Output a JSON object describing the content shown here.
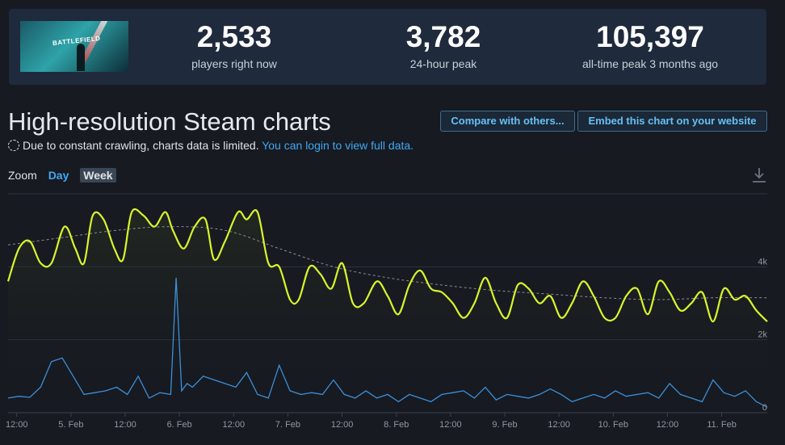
{
  "header": {
    "thumbnail_text": "BATTLEFIELD",
    "stats": [
      {
        "value": "2,533",
        "label": "players right now"
      },
      {
        "value": "3,782",
        "label": "24-hour peak"
      },
      {
        "value": "105,397",
        "label": "all-time peak 3 months ago"
      }
    ]
  },
  "title": "High-resolution Steam charts",
  "buttons": {
    "compare": "Compare with others...",
    "embed": "Embed this chart on your website"
  },
  "notice": {
    "text": "Due to constant crawling, charts data is limited.",
    "link": "You can login to view full data."
  },
  "zoom": {
    "label": "Zoom",
    "options": [
      "Day",
      "Week"
    ],
    "selected": "Week"
  },
  "colors": {
    "players": "#d7f52b",
    "twitch": "#3c8fd8",
    "average": "#8a8f98"
  },
  "chart_data": {
    "type": "line",
    "x_ticks": [
      "12:00",
      "5. Feb",
      "12:00",
      "6. Feb",
      "12:00",
      "7. Feb",
      "12:00",
      "8. Feb",
      "12:00",
      "9. Feb",
      "12:00",
      "10. Feb",
      "12:00",
      "11. Feb"
    ],
    "x_range": [
      0,
      7
    ],
    "y_ticks": [
      "0",
      "2k",
      "4k"
    ],
    "y_tick_values": [
      0,
      2000,
      4000
    ],
    "ylim": [
      0,
      6000
    ],
    "series": [
      {
        "key": "players",
        "color": "#d7f52b",
        "x": [
          0.0,
          0.1,
          0.2,
          0.3,
          0.4,
          0.52,
          0.62,
          0.7,
          0.78,
          0.88,
          0.98,
          1.06,
          1.14,
          1.25,
          1.35,
          1.45,
          1.52,
          1.62,
          1.72,
          1.82,
          1.9,
          2.0,
          2.12,
          2.2,
          2.3,
          2.4,
          2.5,
          2.6,
          2.68,
          2.78,
          2.88,
          2.98,
          3.08,
          3.18,
          3.28,
          3.4,
          3.5,
          3.6,
          3.7,
          3.8,
          3.9,
          4.0,
          4.1,
          4.2,
          4.3,
          4.4,
          4.5,
          4.6,
          4.7,
          4.8,
          4.9,
          5.0,
          5.1,
          5.2,
          5.3,
          5.4,
          5.5,
          5.6,
          5.7,
          5.8,
          5.9,
          6.0,
          6.1,
          6.2,
          6.3,
          6.4,
          6.5,
          6.6,
          6.7,
          6.8,
          6.9,
          7.0
        ],
        "y": [
          3600,
          4500,
          4700,
          4100,
          4100,
          5100,
          4500,
          4100,
          5400,
          5300,
          4500,
          4200,
          5500,
          5400,
          5100,
          5500,
          5000,
          4500,
          5100,
          5300,
          4200,
          4700,
          5500,
          5300,
          5500,
          4100,
          4000,
          3100,
          3100,
          4000,
          3800,
          3400,
          4100,
          3000,
          3000,
          3600,
          3200,
          2700,
          3500,
          3900,
          3400,
          3300,
          3000,
          2600,
          3000,
          3700,
          3000,
          2600,
          3500,
          3400,
          3000,
          3200,
          2600,
          3000,
          3600,
          3200,
          2600,
          2600,
          3200,
          3400,
          2700,
          3600,
          3300,
          2800,
          3000,
          3300,
          2500,
          3400,
          3100,
          3200,
          2800,
          2500
        ]
      },
      {
        "key": "average",
        "color": "#8a8f98",
        "x": [
          0.0,
          0.5,
          1.0,
          1.5,
          2.0,
          2.5,
          3.0,
          3.5,
          4.0,
          4.5,
          5.0,
          5.5,
          6.0,
          6.5,
          7.0
        ],
        "y": [
          4600,
          4800,
          5000,
          5100,
          5000,
          4500,
          4000,
          3700,
          3500,
          3350,
          3250,
          3150,
          3100,
          3150,
          3150
        ]
      },
      {
        "key": "twitch",
        "color": "#3c8fd8",
        "x": [
          0.0,
          0.1,
          0.2,
          0.3,
          0.4,
          0.5,
          0.6,
          0.7,
          0.8,
          0.9,
          1.0,
          1.1,
          1.2,
          1.3,
          1.4,
          1.5,
          1.55,
          1.6,
          1.65,
          1.7,
          1.8,
          1.9,
          2.0,
          2.1,
          2.2,
          2.3,
          2.4,
          2.5,
          2.6,
          2.7,
          2.8,
          2.9,
          3.0,
          3.1,
          3.2,
          3.3,
          3.4,
          3.5,
          3.6,
          3.7,
          3.8,
          3.9,
          4.0,
          4.1,
          4.2,
          4.3,
          4.4,
          4.5,
          4.6,
          4.7,
          4.8,
          4.9,
          5.0,
          5.1,
          5.2,
          5.3,
          5.4,
          5.5,
          5.6,
          5.7,
          5.8,
          5.9,
          6.0,
          6.1,
          6.2,
          6.3,
          6.4,
          6.5,
          6.6,
          6.7,
          6.8,
          6.9,
          7.0
        ],
        "y": [
          400,
          450,
          420,
          700,
          1400,
          1500,
          1000,
          500,
          550,
          600,
          700,
          500,
          1000,
          400,
          550,
          500,
          3700,
          600,
          800,
          700,
          1000,
          900,
          800,
          700,
          1100,
          500,
          400,
          1300,
          600,
          500,
          550,
          500,
          900,
          500,
          400,
          600,
          400,
          500,
          300,
          500,
          400,
          300,
          500,
          550,
          600,
          400,
          700,
          350,
          500,
          450,
          400,
          500,
          650,
          500,
          300,
          400,
          500,
          400,
          600,
          450,
          500,
          550,
          400,
          800,
          500,
          400,
          300,
          900,
          550,
          450,
          600,
          300,
          150
        ]
      }
    ]
  }
}
